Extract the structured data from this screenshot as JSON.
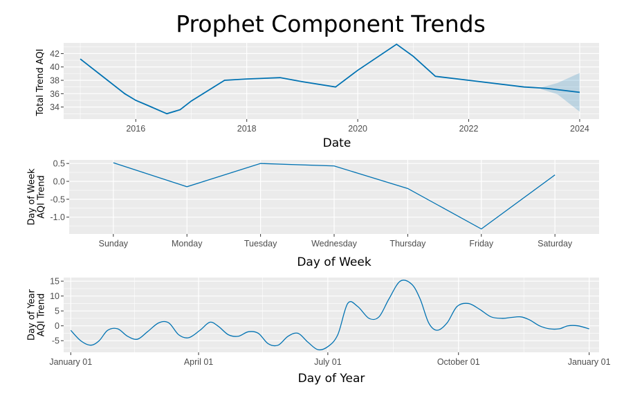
{
  "title": "Prophet Component Trends",
  "chart_data": [
    {
      "type": "line",
      "name_key": "trend",
      "xlabel": "Date",
      "ylabel": "Total Trend AQI",
      "x_ticks": [
        "2016",
        "2018",
        "2020",
        "2022",
        "2024"
      ],
      "y_ticks": [
        "34",
        "36",
        "38",
        "40",
        "42"
      ],
      "xlim": [
        2014.7,
        2024.35
      ],
      "ylim": [
        32.2,
        43.6
      ],
      "x": [
        2015.0,
        2015.4,
        2015.8,
        2016.0,
        2016.2,
        2016.56,
        2016.8,
        2017.0,
        2017.6,
        2018.0,
        2018.6,
        2019.0,
        2019.6,
        2020.0,
        2020.7,
        2021.0,
        2021.4,
        2022.0,
        2023.0,
        2023.4,
        2024.0
      ],
      "values": [
        41.2,
        38.6,
        36.0,
        35.0,
        34.3,
        33.0,
        33.6,
        34.9,
        38.0,
        38.2,
        38.4,
        37.8,
        37.0,
        39.5,
        43.4,
        41.6,
        38.6,
        38.0,
        37.0,
        36.8,
        36.2
      ],
      "band_x": [
        2023.3,
        2023.6,
        2024.0
      ],
      "band_lower": [
        36.7,
        35.9,
        33.3
      ],
      "band_upper": [
        36.9,
        37.6,
        39.1
      ],
      "grid": true
    },
    {
      "type": "line",
      "name_key": "weekly",
      "xlabel": "Day of Week",
      "ylabel_lines": [
        "Day of Week",
        "AQI Trend"
      ],
      "categories": [
        "Sunday",
        "Monday",
        "Tuesday",
        "Wednesday",
        "Thursday",
        "Friday",
        "Saturday"
      ],
      "y_ticks": [
        "0.5",
        "0.0",
        "-0.5",
        "-1.0"
      ],
      "values": [
        0.52,
        -0.15,
        0.5,
        0.43,
        -0.2,
        -1.33,
        0.18
      ],
      "ylim": [
        -1.47,
        0.6
      ],
      "grid": true
    },
    {
      "type": "line",
      "name_key": "yearly",
      "xlabel": "Day of Year",
      "ylabel_lines": [
        "Day of Year",
        "AQI Trend"
      ],
      "x_ticks": [
        "January 01",
        "April 01",
        "July 01",
        "October 01",
        "January 01"
      ],
      "y_ticks": [
        "15",
        "10",
        "5",
        "0",
        "-5"
      ],
      "xlim": [
        -5,
        372
      ],
      "ylim": [
        -8.9,
        16.2
      ],
      "x": [
        0,
        7,
        14,
        20,
        26,
        33,
        40,
        47,
        54,
        62,
        69,
        76,
        83,
        91,
        98,
        104,
        111,
        118,
        125,
        132,
        139,
        146,
        153,
        160,
        167,
        174,
        181,
        188,
        195,
        202,
        210,
        217,
        224,
        232,
        240,
        246,
        252,
        258,
        265,
        272,
        280,
        288,
        296,
        304,
        310,
        317,
        323,
        330,
        337,
        344,
        350,
        357,
        365
      ],
      "values": [
        -1.5,
        -5.0,
        -6.5,
        -5.0,
        -1.5,
        -1.0,
        -3.5,
        -4.5,
        -2.0,
        1.0,
        1.0,
        -3.0,
        -4.0,
        -1.5,
        1.2,
        -0.2,
        -3.0,
        -3.5,
        -2.0,
        -2.5,
        -6.0,
        -6.5,
        -3.5,
        -2.5,
        -5.5,
        -8.0,
        -7.0,
        -3.0,
        7.5,
        6.5,
        2.5,
        3.0,
        9.0,
        15.0,
        14.0,
        9.0,
        1.0,
        -1.5,
        1.0,
        6.5,
        7.5,
        5.5,
        3.0,
        2.5,
        2.8,
        3.0,
        2.0,
        0.0,
        -1.0,
        -1.0,
        0.0,
        0.0,
        -1.0
      ],
      "grid": true
    }
  ]
}
